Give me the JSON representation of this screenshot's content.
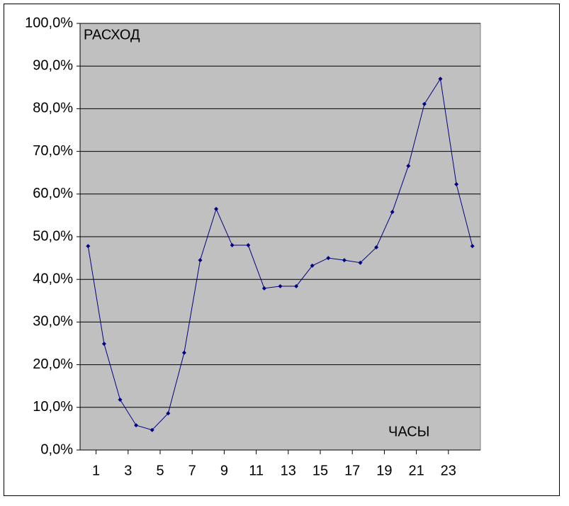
{
  "chart_data": {
    "type": "line",
    "y_label": "РАСХОД",
    "x_label": "ЧАСЫ",
    "x": [
      0.5,
      1.5,
      2.5,
      3.5,
      4.5,
      5.5,
      6.5,
      7.5,
      8.5,
      9.5,
      10.5,
      11.5,
      12.5,
      13.5,
      14.5,
      15.5,
      16.5,
      17.5,
      18.5,
      19.5,
      20.5,
      21.5,
      22.5,
      23.5,
      24.5
    ],
    "series": [
      {
        "color": "#000080",
        "values": [
          47.8,
          24.9,
          11.8,
          5.8,
          4.7,
          8.6,
          22.8,
          44.5,
          56.5,
          48.0,
          48.0,
          37.9,
          38.4,
          38.4,
          43.2,
          45.0,
          44.5,
          43.9,
          47.5,
          55.8,
          66.6,
          81.1,
          87.0,
          62.3,
          47.8
        ]
      }
    ],
    "xlim": [
      0,
      25
    ],
    "xticks": [
      1,
      3,
      5,
      7,
      9,
      11,
      13,
      15,
      17,
      19,
      21,
      23
    ],
    "ylim": [
      0,
      100
    ],
    "yticks": [
      {
        "value": 0,
        "label": "0,0%"
      },
      {
        "value": 10,
        "label": "10,0%"
      },
      {
        "value": 20,
        "label": "20,0%"
      },
      {
        "value": 30,
        "label": "30,0%"
      },
      {
        "value": 40,
        "label": "40,0%"
      },
      {
        "value": 50,
        "label": "50,0%"
      },
      {
        "value": 60,
        "label": "60,0%"
      },
      {
        "value": 70,
        "label": "70,0%"
      },
      {
        "value": 80,
        "label": "80,0%"
      },
      {
        "value": 90,
        "label": "90,0%"
      },
      {
        "value": 100,
        "label": "100,0%"
      }
    ],
    "grid": true,
    "plot_background": "#c0c0c0"
  }
}
